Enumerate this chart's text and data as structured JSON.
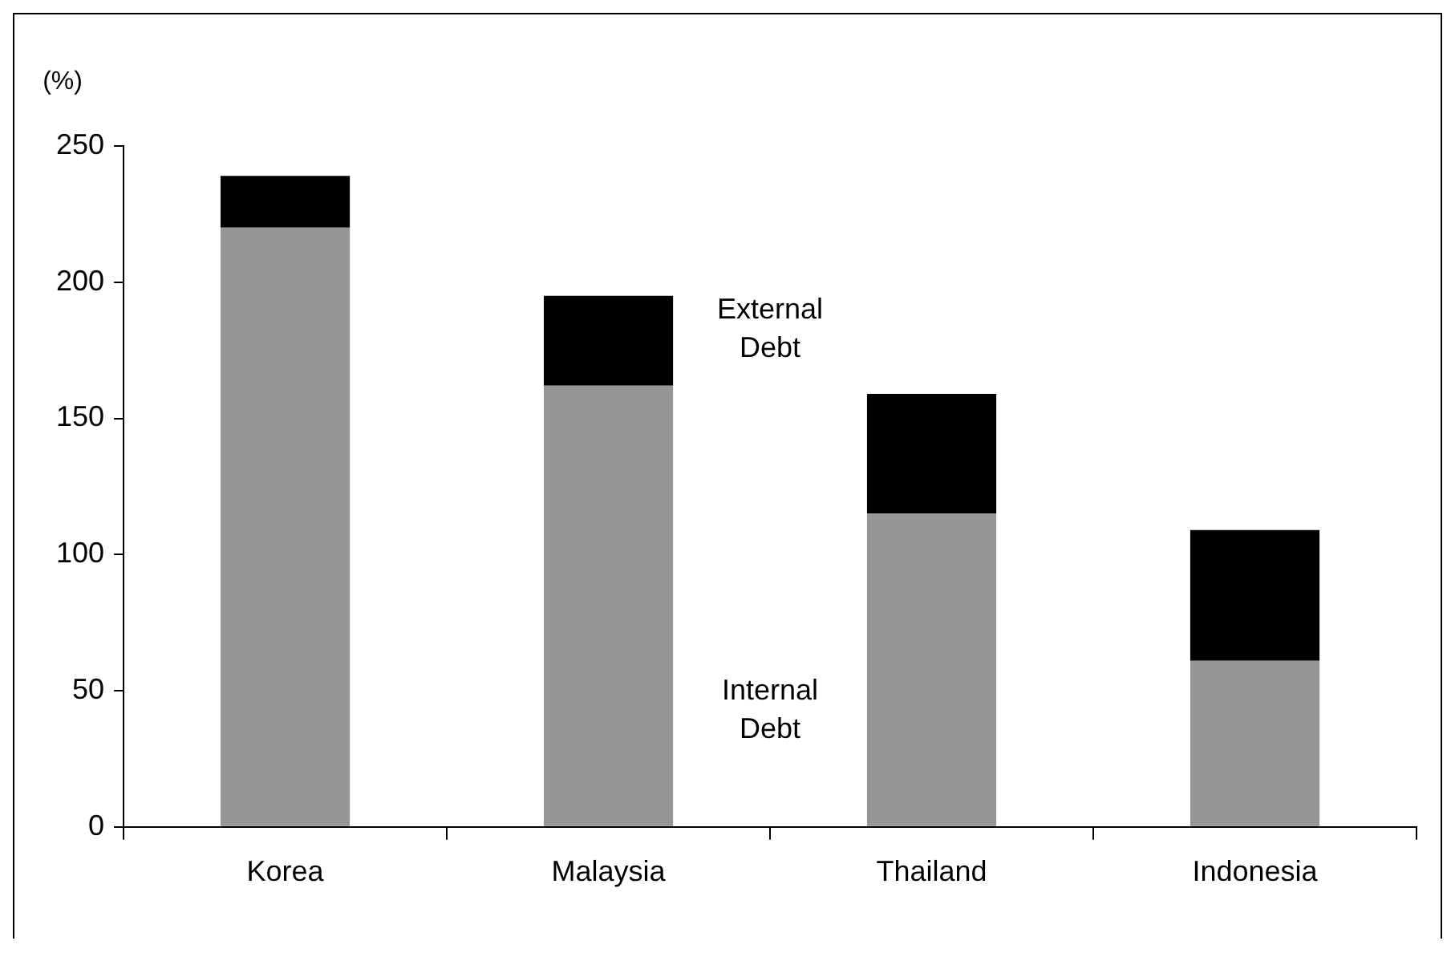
{
  "chart_data": {
    "type": "bar",
    "ylabel": "(%)",
    "categories": [
      "Korea",
      "Malaysia",
      "Thailand",
      "Indonesia"
    ],
    "stacked": true,
    "ylim": [
      0,
      250
    ],
    "yticks": [
      0,
      50,
      100,
      150,
      200,
      250
    ],
    "grid": false,
    "legend": false,
    "series": [
      {
        "name": "Internal Debt",
        "color": "#969696",
        "values": [
          220,
          162,
          115,
          61
        ]
      },
      {
        "name": "External Debt",
        "color": "#000000",
        "values": [
          19,
          33,
          44,
          48
        ]
      }
    ]
  }
}
